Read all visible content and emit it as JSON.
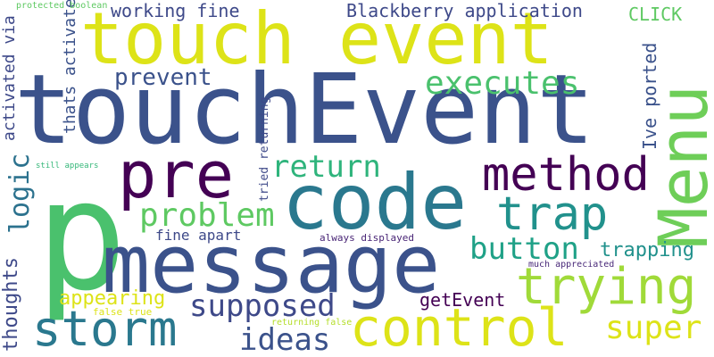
{
  "words": [
    {
      "text": "touchEvent",
      "color": "#3b528b"
    },
    {
      "text": "p",
      "color": "#4ac16d"
    },
    {
      "text": "message",
      "color": "#3b528b"
    },
    {
      "text": "touch event",
      "color": "#dde318"
    },
    {
      "text": "code",
      "color": "#2a788e"
    },
    {
      "text": "Menu",
      "color": "#6ece58"
    },
    {
      "text": "pre",
      "color": "#440154"
    },
    {
      "text": "method",
      "color": "#440154"
    },
    {
      "text": "trap",
      "color": "#21918c"
    },
    {
      "text": "trying",
      "color": "#a0da39"
    },
    {
      "text": "control",
      "color": "#dde318"
    },
    {
      "text": "storm",
      "color": "#2a788e"
    },
    {
      "text": "executes",
      "color": "#4ac16d"
    },
    {
      "text": "return",
      "color": "#2fb47c"
    },
    {
      "text": "problem",
      "color": "#5ec962"
    },
    {
      "text": "supposed",
      "color": "#3e4989"
    },
    {
      "text": "button",
      "color": "#1fa187"
    },
    {
      "text": "super",
      "color": "#dde318"
    },
    {
      "text": "ideas",
      "color": "#3b528b"
    },
    {
      "text": "prevent",
      "color": "#3b528b"
    },
    {
      "text": "logic",
      "color": "#2c728e"
    },
    {
      "text": "working fine",
      "color": "#3e4989"
    },
    {
      "text": "Blackberry application",
      "color": "#3e4989"
    },
    {
      "text": "CLICK",
      "color": "#5ec962"
    },
    {
      "text": "Ive ported",
      "color": "#3b528b"
    },
    {
      "text": "thats activated",
      "color": "#3b528b"
    },
    {
      "text": "activated via",
      "color": "#3e4989"
    },
    {
      "text": "thoughts",
      "color": "#3e4989"
    },
    {
      "text": "appearing",
      "color": "#dde318"
    },
    {
      "text": "trapping",
      "color": "#21918c"
    },
    {
      "text": "getEvent",
      "color": "#440154"
    },
    {
      "text": "fine apart",
      "color": "#3e4989"
    },
    {
      "text": "tried returning",
      "color": "#3e4989"
    },
    {
      "text": "always displayed",
      "color": "#482475"
    },
    {
      "text": "much appreciated",
      "color": "#482878"
    },
    {
      "text": "protected boolean",
      "color": "#5ec962"
    },
    {
      "text": "still appears",
      "color": "#35b779"
    },
    {
      "text": "false true",
      "color": "#dde318"
    },
    {
      "text": "returning false",
      "color": "#b5de2b"
    }
  ]
}
